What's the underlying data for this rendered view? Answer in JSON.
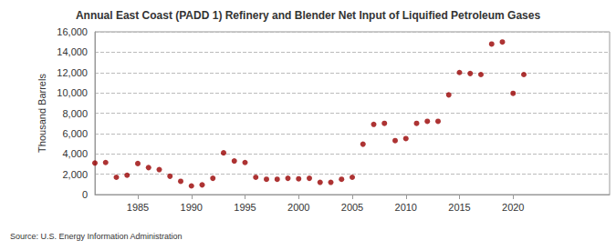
{
  "chart_data": {
    "type": "scatter",
    "title": "Annual East Coast (PADD 1) Refinery and Blender Net Input of Liquified Petroleum Gases",
    "y_label": "Thousand Barrels",
    "source": "Source: U.S. Energy Information Administration",
    "x": [
      1981,
      1982,
      1983,
      1984,
      1985,
      1986,
      1987,
      1988,
      1989,
      1990,
      1991,
      1992,
      1993,
      1994,
      1995,
      1996,
      1997,
      1998,
      1999,
      2000,
      2001,
      2002,
      2003,
      2004,
      2005,
      2006,
      2007,
      2008,
      2009,
      2010,
      2011,
      2012,
      2013,
      2014,
      2015,
      2016,
      2017,
      2018,
      2019,
      2020,
      2021
    ],
    "values": [
      3100,
      3150,
      1700,
      1900,
      3050,
      2650,
      2450,
      1800,
      1300,
      850,
      950,
      1600,
      4100,
      3300,
      3150,
      1700,
      1500,
      1500,
      1600,
      1550,
      1600,
      1200,
      1200,
      1500,
      1700,
      4950,
      6900,
      7000,
      5300,
      5500,
      7000,
      7200,
      7200,
      9800,
      12000,
      11900,
      11800,
      14800,
      15000,
      9950,
      11800
    ],
    "color": "#990000",
    "marker": "circle",
    "xlim": [
      1981,
      2029
    ],
    "xticks": [
      1985,
      1990,
      1995,
      2000,
      2005,
      2010,
      2015,
      2020
    ],
    "ylim": [
      0,
      16000
    ],
    "yticks": [
      0,
      {
        "value": 2000,
        "label": "2,000"
      },
      {
        "value": 4000,
        "label": "4,000"
      },
      {
        "value": 6000,
        "label": "6,000"
      },
      {
        "value": 8000,
        "label": "8,000"
      },
      {
        "value": 10000,
        "label": "10,000"
      },
      {
        "value": 12000,
        "label": "12,000"
      },
      {
        "value": 14000,
        "label": "14,000"
      },
      {
        "value": 16000,
        "label": "16,000"
      }
    ],
    "grid": true
  }
}
